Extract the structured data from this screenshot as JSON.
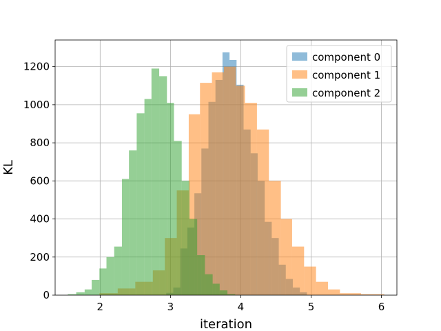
{
  "chart_data": {
    "type": "histogram",
    "xlabel": "iteration",
    "ylabel": "KL",
    "xlim": [
      1.36,
      6.22
    ],
    "ylim": [
      0,
      1340
    ],
    "xticks": [
      "2",
      "3",
      "4",
      "5",
      "6"
    ],
    "yticks": [
      "0",
      "200",
      "400",
      "600",
      "800",
      "1000",
      "1200"
    ],
    "grid": true,
    "legend_position": "top-right",
    "series": [
      {
        "name": "component 0",
        "color": "#1f77b4",
        "bins": [
          {
            "x0": 2.94,
            "x1": 3.04,
            "count": 12
          },
          {
            "x0": 3.04,
            "x1": 3.14,
            "count": 40
          },
          {
            "x0": 3.14,
            "x1": 3.24,
            "count": 245
          },
          {
            "x0": 3.24,
            "x1": 3.34,
            "count": 355
          },
          {
            "x0": 3.34,
            "x1": 3.44,
            "count": 535
          },
          {
            "x0": 3.44,
            "x1": 3.54,
            "count": 770
          },
          {
            "x0": 3.54,
            "x1": 3.64,
            "count": 1015
          },
          {
            "x0": 3.64,
            "x1": 3.74,
            "count": 1130
          },
          {
            "x0": 3.74,
            "x1": 3.84,
            "count": 1275
          },
          {
            "x0": 3.84,
            "x1": 3.94,
            "count": 1235
          },
          {
            "x0": 3.94,
            "x1": 4.04,
            "count": 1105
          },
          {
            "x0": 4.04,
            "x1": 4.14,
            "count": 870
          },
          {
            "x0": 4.14,
            "x1": 4.24,
            "count": 745
          },
          {
            "x0": 4.24,
            "x1": 4.34,
            "count": 600
          },
          {
            "x0": 4.34,
            "x1": 4.44,
            "count": 385
          },
          {
            "x0": 4.44,
            "x1": 4.54,
            "count": 300
          },
          {
            "x0": 4.54,
            "x1": 4.64,
            "count": 160
          },
          {
            "x0": 4.64,
            "x1": 4.74,
            "count": 85
          },
          {
            "x0": 4.74,
            "x1": 4.84,
            "count": 40
          },
          {
            "x0": 4.84,
            "x1": 4.94,
            "count": 15
          }
        ]
      },
      {
        "name": "component 1",
        "color": "#ff7f0e",
        "bins": [
          {
            "x0": 1.99,
            "x1": 2.25,
            "count": 10
          },
          {
            "x0": 2.25,
            "x1": 2.5,
            "count": 35
          },
          {
            "x0": 2.5,
            "x1": 2.75,
            "count": 70
          },
          {
            "x0": 2.75,
            "x1": 2.92,
            "count": 130
          },
          {
            "x0": 2.92,
            "x1": 3.09,
            "count": 300
          },
          {
            "x0": 3.09,
            "x1": 3.26,
            "count": 550
          },
          {
            "x0": 3.26,
            "x1": 3.42,
            "count": 950
          },
          {
            "x0": 3.42,
            "x1": 3.59,
            "count": 1115
          },
          {
            "x0": 3.59,
            "x1": 3.76,
            "count": 1170
          },
          {
            "x0": 3.76,
            "x1": 3.93,
            "count": 1200
          },
          {
            "x0": 3.93,
            "x1": 4.06,
            "count": 1100
          },
          {
            "x0": 4.06,
            "x1": 4.23,
            "count": 1010
          },
          {
            "x0": 4.23,
            "x1": 4.4,
            "count": 870
          },
          {
            "x0": 4.4,
            "x1": 4.57,
            "count": 600
          },
          {
            "x0": 4.57,
            "x1": 4.73,
            "count": 400
          },
          {
            "x0": 4.73,
            "x1": 4.9,
            "count": 255
          },
          {
            "x0": 4.9,
            "x1": 5.07,
            "count": 150
          },
          {
            "x0": 5.07,
            "x1": 5.24,
            "count": 70
          },
          {
            "x0": 5.24,
            "x1": 5.41,
            "count": 30
          },
          {
            "x0": 5.41,
            "x1": 5.71,
            "count": 10
          },
          {
            "x0": 5.71,
            "x1": 6.04,
            "count": 5
          }
        ]
      },
      {
        "name": "component 2",
        "color": "#2ca02c",
        "bins": [
          {
            "x0": 1.54,
            "x1": 1.66,
            "count": 5
          },
          {
            "x0": 1.66,
            "x1": 1.78,
            "count": 15
          },
          {
            "x0": 1.78,
            "x1": 1.88,
            "count": 30
          },
          {
            "x0": 1.88,
            "x1": 1.99,
            "count": 80
          },
          {
            "x0": 1.99,
            "x1": 2.09,
            "count": 140
          },
          {
            "x0": 2.09,
            "x1": 2.2,
            "count": 200
          },
          {
            "x0": 2.2,
            "x1": 2.31,
            "count": 255
          },
          {
            "x0": 2.31,
            "x1": 2.41,
            "count": 610
          },
          {
            "x0": 2.41,
            "x1": 2.52,
            "count": 760
          },
          {
            "x0": 2.52,
            "x1": 2.63,
            "count": 955
          },
          {
            "x0": 2.63,
            "x1": 2.73,
            "count": 1030
          },
          {
            "x0": 2.73,
            "x1": 2.84,
            "count": 1190
          },
          {
            "x0": 2.84,
            "x1": 2.95,
            "count": 1150
          },
          {
            "x0": 2.95,
            "x1": 3.05,
            "count": 1010
          },
          {
            "x0": 3.05,
            "x1": 3.16,
            "count": 810
          },
          {
            "x0": 3.16,
            "x1": 3.27,
            "count": 600
          },
          {
            "x0": 3.27,
            "x1": 3.38,
            "count": 400
          },
          {
            "x0": 3.38,
            "x1": 3.49,
            "count": 210
          },
          {
            "x0": 3.49,
            "x1": 3.6,
            "count": 110
          },
          {
            "x0": 3.6,
            "x1": 3.7,
            "count": 60
          },
          {
            "x0": 3.7,
            "x1": 3.81,
            "count": 25
          },
          {
            "x0": 3.81,
            "x1": 3.92,
            "count": 5
          }
        ]
      }
    ]
  }
}
